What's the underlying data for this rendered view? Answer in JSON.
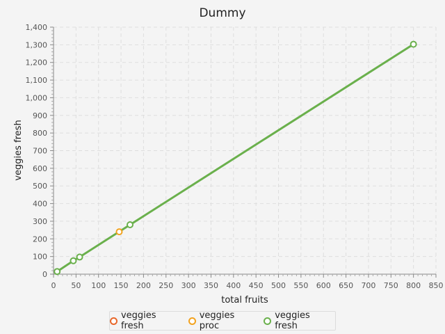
{
  "chart_data": {
    "type": "line",
    "title": "Dummy",
    "xlabel": "total fruits",
    "ylabel": "veggies fresh",
    "xlim": [
      0,
      850
    ],
    "ylim": [
      0,
      1400
    ],
    "xticks": [
      0,
      50,
      100,
      150,
      200,
      250,
      300,
      350,
      400,
      450,
      500,
      550,
      600,
      650,
      700,
      750,
      800,
      850
    ],
    "yticks": [
      0,
      100,
      200,
      300,
      400,
      500,
      600,
      700,
      800,
      900,
      1000,
      1100,
      1200,
      1300,
      1400
    ],
    "xtick_labels": [
      "0",
      "50",
      "100",
      "150",
      "200",
      "250",
      "300",
      "350",
      "400",
      "450",
      "500",
      "550",
      "600",
      "650",
      "700",
      "750",
      "800",
      "850"
    ],
    "ytick_labels": [
      "0",
      "100",
      "200",
      "300",
      "400",
      "500",
      "600",
      "700",
      "800",
      "900",
      "1,000",
      "1,100",
      "1,200",
      "1,300",
      "1,400"
    ],
    "grid": true,
    "legend_position": "bottom",
    "series": [
      {
        "name": "veggies fresh",
        "color": "#e8672a",
        "points": []
      },
      {
        "name": "veggies proc",
        "color": "#f2a21e",
        "points": [
          [
            146,
            240
          ]
        ]
      },
      {
        "name": "veggies fresh",
        "color": "#6ab04c",
        "points": [
          [
            8,
            15
          ],
          [
            44,
            76
          ],
          [
            58,
            97
          ],
          [
            170,
            280
          ],
          [
            800,
            1303
          ]
        ]
      }
    ]
  }
}
